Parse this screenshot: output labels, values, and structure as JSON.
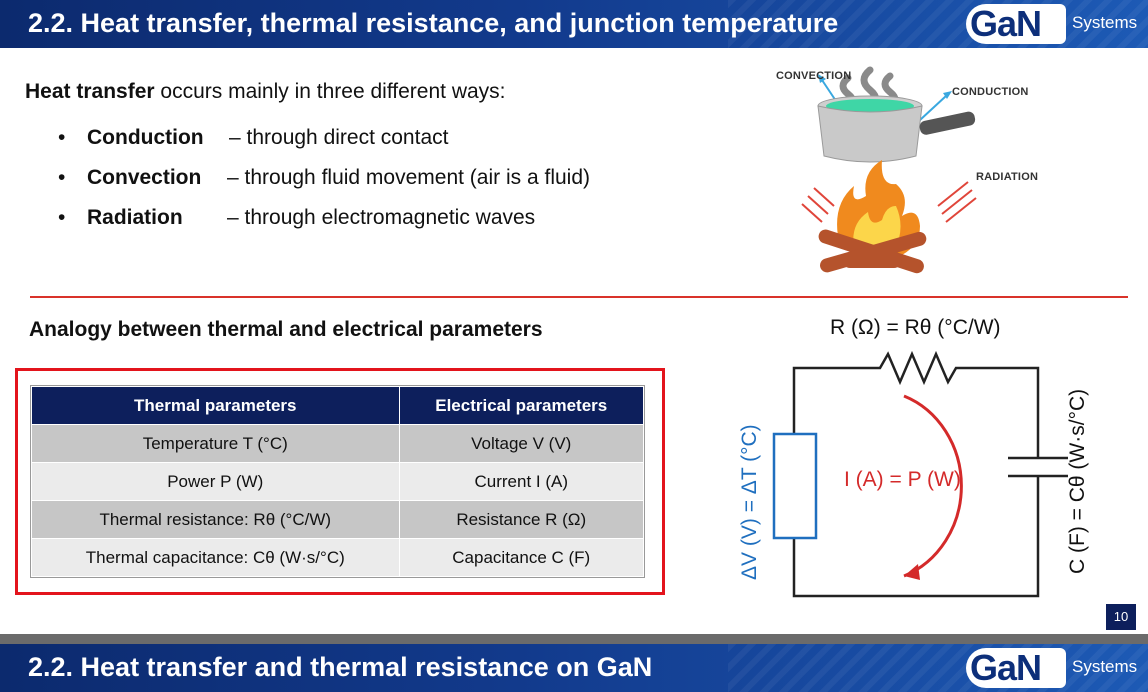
{
  "slide1": {
    "title": "2.2. Heat transfer, thermal resistance, and junction temperature",
    "logo": {
      "mark": "GaN",
      "word": "Systems"
    },
    "intro": {
      "bold": "Heat transfer",
      "rest": " occurs mainly in three different ways:"
    },
    "bullets": [
      {
        "term": "Conduction",
        "desc": "–  through direct contact"
      },
      {
        "term": "Convection",
        "desc": "–  through fluid movement (air is a fluid)"
      },
      {
        "term": "Radiation",
        "desc": "–  through electromagnetic waves"
      }
    ],
    "illustration": {
      "labels": {
        "convection": "CONVECTION",
        "conduction": "CONDUCTION",
        "radiation": "RADIATION"
      }
    },
    "section_heading": "Analogy between thermal and electrical parameters",
    "table": {
      "headers": [
        "Thermal parameters",
        "Electrical parameters"
      ],
      "rows": [
        [
          "Temperature T (°C)",
          "Voltage V (V)"
        ],
        [
          "Power P (W)",
          "Current I (A)"
        ],
        [
          "Thermal resistance: Rθ (°C/W)",
          "Resistance R (Ω)"
        ],
        [
          "Thermal capacitance: Cθ (W·s/°C)",
          "Capacitance C (F)"
        ]
      ]
    },
    "circuit": {
      "resistor_label": "R (Ω) = Rθ (°C/W)",
      "voltage_label": "ΔV (V) = ΔT (°C)",
      "current_label": "I (A) = P (W)",
      "capacitor_label": "C (F) = Cθ (W·s/°C)",
      "colors": {
        "line": "#222222",
        "voltage": "#1f6fbf",
        "current": "#d42a2a"
      }
    },
    "page_number": "10"
  },
  "slide2": {
    "title": "2.2. Heat transfer and thermal resistance on GaN",
    "logo": {
      "mark": "GaN",
      "word": "Systems"
    }
  }
}
